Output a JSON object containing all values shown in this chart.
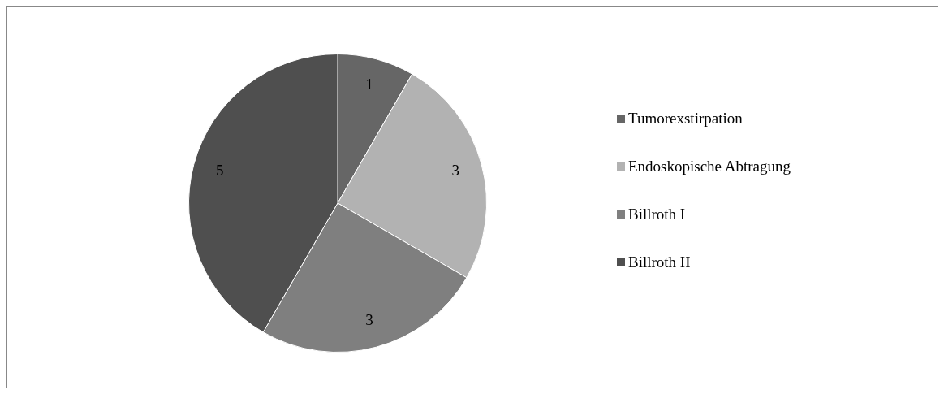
{
  "chart_data": {
    "type": "pie",
    "categories": [
      "Tumorexstirpation",
      "Endoskopische Abtragung",
      "Billroth I",
      "Billroth II"
    ],
    "values": [
      1,
      3,
      3,
      5
    ],
    "colors": [
      "#666666",
      "#b2b2b2",
      "#7f7f7f",
      "#4f4f4f"
    ],
    "data_labels": true,
    "legend": "right"
  }
}
